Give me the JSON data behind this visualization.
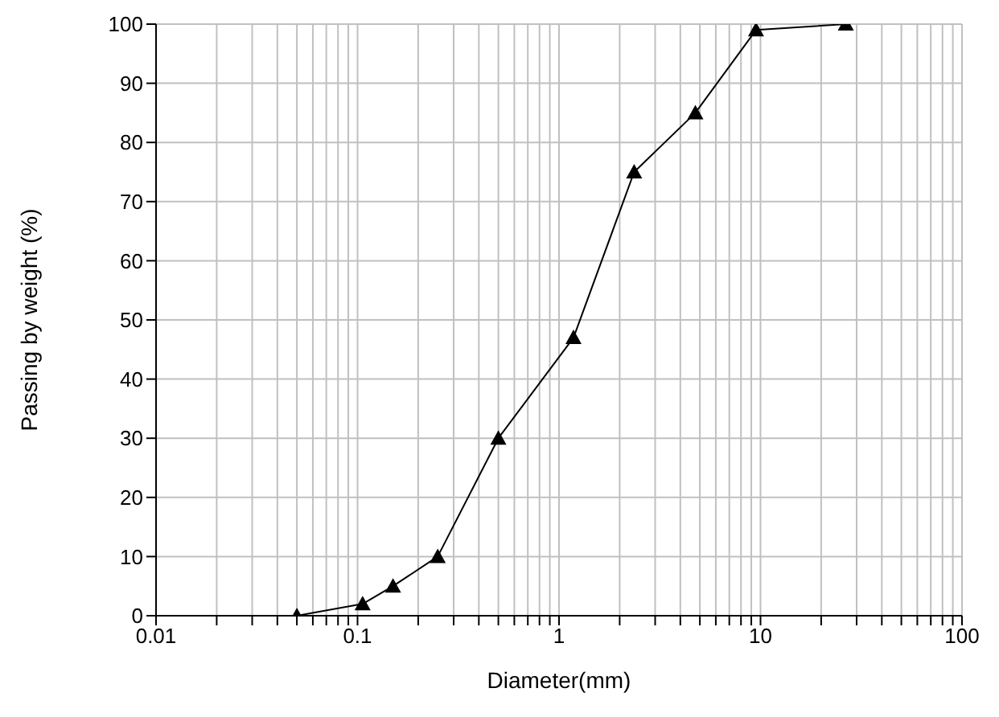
{
  "chart_data": {
    "type": "line",
    "xlabel": "Diameter(mm)",
    "ylabel": "Passing by weight (%)",
    "x": [
      0.05,
      0.106,
      0.15,
      0.25,
      0.5,
      1.18,
      2.36,
      4.75,
      9.5,
      26.5
    ],
    "series": [
      {
        "color": "#000000",
        "values": [
          0,
          2,
          5,
          10,
          30,
          47,
          75,
          85,
          99,
          100
        ]
      }
    ],
    "log": "x",
    "xlim": [
      0.01,
      100
    ],
    "xticks": [
      0.01,
      {
        "value": 0.02,
        "label": null
      },
      {
        "value": 0.03,
        "label": null
      },
      {
        "value": 0.04,
        "label": null
      },
      {
        "value": 0.05,
        "label": null
      },
      {
        "value": 0.06,
        "label": null
      },
      {
        "value": 0.07,
        "label": null
      },
      {
        "value": 0.08,
        "label": null
      },
      {
        "value": 0.09,
        "label": null
      },
      0.1,
      {
        "value": 0.2,
        "label": null
      },
      {
        "value": 0.3,
        "label": null
      },
      {
        "value": 0.4,
        "label": null
      },
      {
        "value": 0.5,
        "label": null
      },
      {
        "value": 0.6,
        "label": null
      },
      {
        "value": 0.7,
        "label": null
      },
      {
        "value": 0.8,
        "label": null
      },
      {
        "value": 0.9,
        "label": null
      },
      1,
      {
        "value": 2,
        "label": null
      },
      {
        "value": 3,
        "label": null
      },
      {
        "value": 4,
        "label": null
      },
      {
        "value": 5,
        "label": null
      },
      {
        "value": 6,
        "label": null
      },
      {
        "value": 7,
        "label": null
      },
      {
        "value": 8,
        "label": null
      },
      {
        "value": 9,
        "label": null
      },
      10,
      {
        "value": 20,
        "label": null
      },
      {
        "value": 30,
        "label": null
      },
      {
        "value": 40,
        "label": null
      },
      {
        "value": 50,
        "label": null
      },
      {
        "value": 60,
        "label": null
      },
      {
        "value": 70,
        "label": null
      },
      {
        "value": 80,
        "label": null
      },
      {
        "value": 90,
        "label": null
      },
      100
    ],
    "ylim": [
      0,
      100
    ],
    "yticks": [
      0,
      10,
      20,
      30,
      40,
      50,
      60,
      70,
      80,
      90,
      100
    ],
    "grid": true,
    "marker": "triangle",
    "line_style": "solid",
    "legend": false
  }
}
